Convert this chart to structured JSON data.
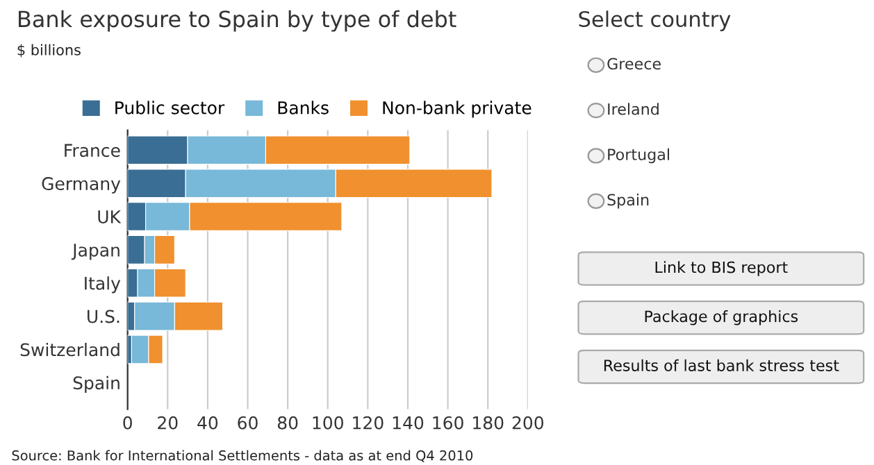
{
  "chart_data": [
    {
      "type": "bar",
      "orientation": "horizontal",
      "stacked": true,
      "title": "Bank exposure to Spain by type of debt",
      "subtitle": "$ billions",
      "categories": [
        "France",
        "Germany",
        "UK",
        "Japan",
        "Italy",
        "U.S.",
        "Switzerland",
        "Spain"
      ],
      "series": [
        {
          "name": "Public sector",
          "color": "#3a6e94",
          "values": [
            30,
            29,
            9,
            8.5,
            5,
            3.5,
            2,
            null
          ]
        },
        {
          "name": "Banks",
          "color": "#78b8d8",
          "values": [
            39,
            75,
            22,
            5,
            8.5,
            20,
            8.5,
            null
          ]
        },
        {
          "name": "Non-bank private",
          "color": "#f0902e",
          "values": [
            72,
            78,
            76,
            10,
            15.5,
            24,
            7,
            null
          ]
        }
      ],
      "xlim": [
        0,
        200
      ],
      "xticks": [
        0,
        20,
        40,
        60,
        80,
        100,
        120,
        140,
        160,
        180,
        200
      ],
      "grid": "x",
      "legend": "top",
      "annotations": [
        "Source: Bank for International Settlements - data as at end Q4 2010"
      ]
    },
    {
      "type": "other",
      "title": "Select country",
      "annotations": [
        "Greece",
        "Ireland",
        "Portugal",
        "Spain"
      ]
    },
    {
      "type": "other",
      "annotations": [
        "Link to BIS report",
        "Package of graphics",
        "Results of last bank stress test"
      ]
    }
  ]
}
